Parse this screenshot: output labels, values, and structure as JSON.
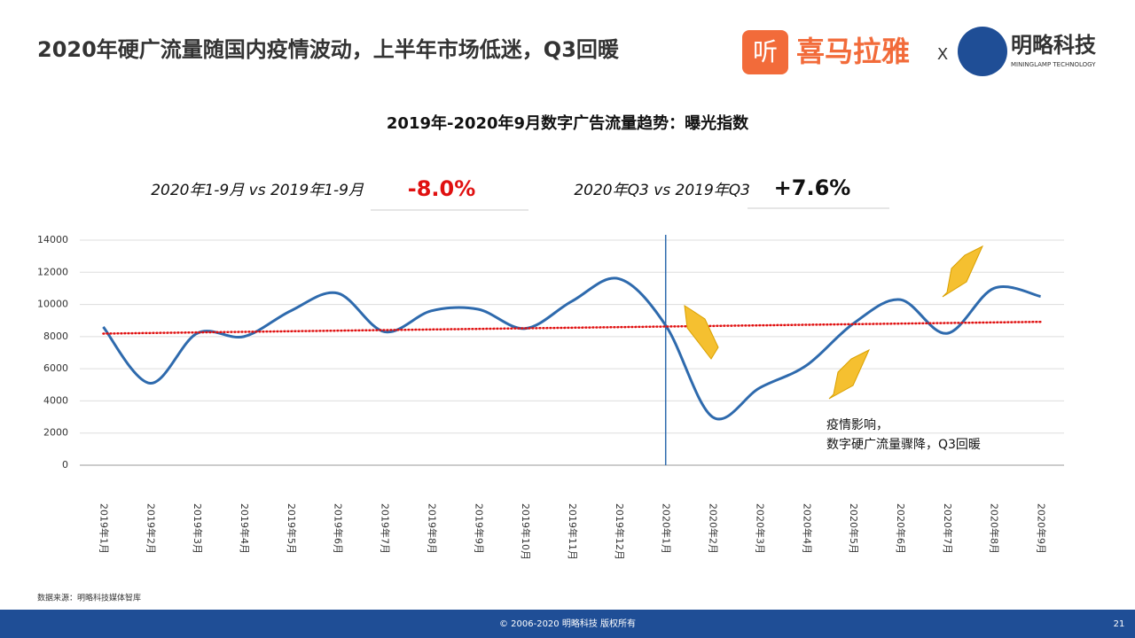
{
  "header": {
    "title": "2020年硬广流量随国内疫情波动，上半年市场低迷，Q3回暖",
    "logo_left": "喜马拉雅",
    "logo_x": "X",
    "logo_right": "明略科技",
    "logo_right_sub": "MININGLAMP TECHNOLOGY"
  },
  "stats": [
    {
      "label": "2020年1-9月 vs 2019年1-9月",
      "value": "-8.0%"
    },
    {
      "label": "2020年Q3 vs 2019年Q3",
      "value": "+7.6%"
    }
  ],
  "chart_data": {
    "type": "line",
    "title": "2019年-2020年9月数字广告流量趋势：曝光指数",
    "categories": [
      "2019年1月",
      "2019年2月",
      "2019年3月",
      "2019年4月",
      "2019年5月",
      "2019年6月",
      "2019年7月",
      "2019年8月",
      "2019年9月",
      "2019年10月",
      "2019年11月",
      "2019年12月",
      "2020年1月",
      "2020年2月",
      "2020年3月",
      "2020年4月",
      "2020年5月",
      "2020年6月",
      "2020年7月",
      "2020年8月",
      "2020年9月"
    ],
    "series": [
      {
        "color": "#2e6aad",
        "values": [
          8600,
          5100,
          8200,
          8000,
          9600,
          10700,
          8300,
          9600,
          9700,
          8500,
          10200,
          11600,
          8700,
          3000,
          4800,
          6200,
          8800,
          10300,
          8200,
          11000,
          10500
        ]
      }
    ],
    "ylim": [
      0,
      14000
    ],
    "yticks": [
      0,
      2000,
      4000,
      6000,
      8000,
      10000,
      12000,
      14000
    ],
    "grid": true,
    "smooth": true,
    "trendline": {
      "color": "#e01010"
    },
    "divider_index": 12,
    "annotation": [
      "疫情影响，",
      "数字硬广流量骤降，Q3回暖"
    ]
  },
  "source": "数据来源：明略科技媒体智库",
  "footer": {
    "copyright": "© 2006-2020 明略科技 版权所有",
    "page": "21"
  }
}
